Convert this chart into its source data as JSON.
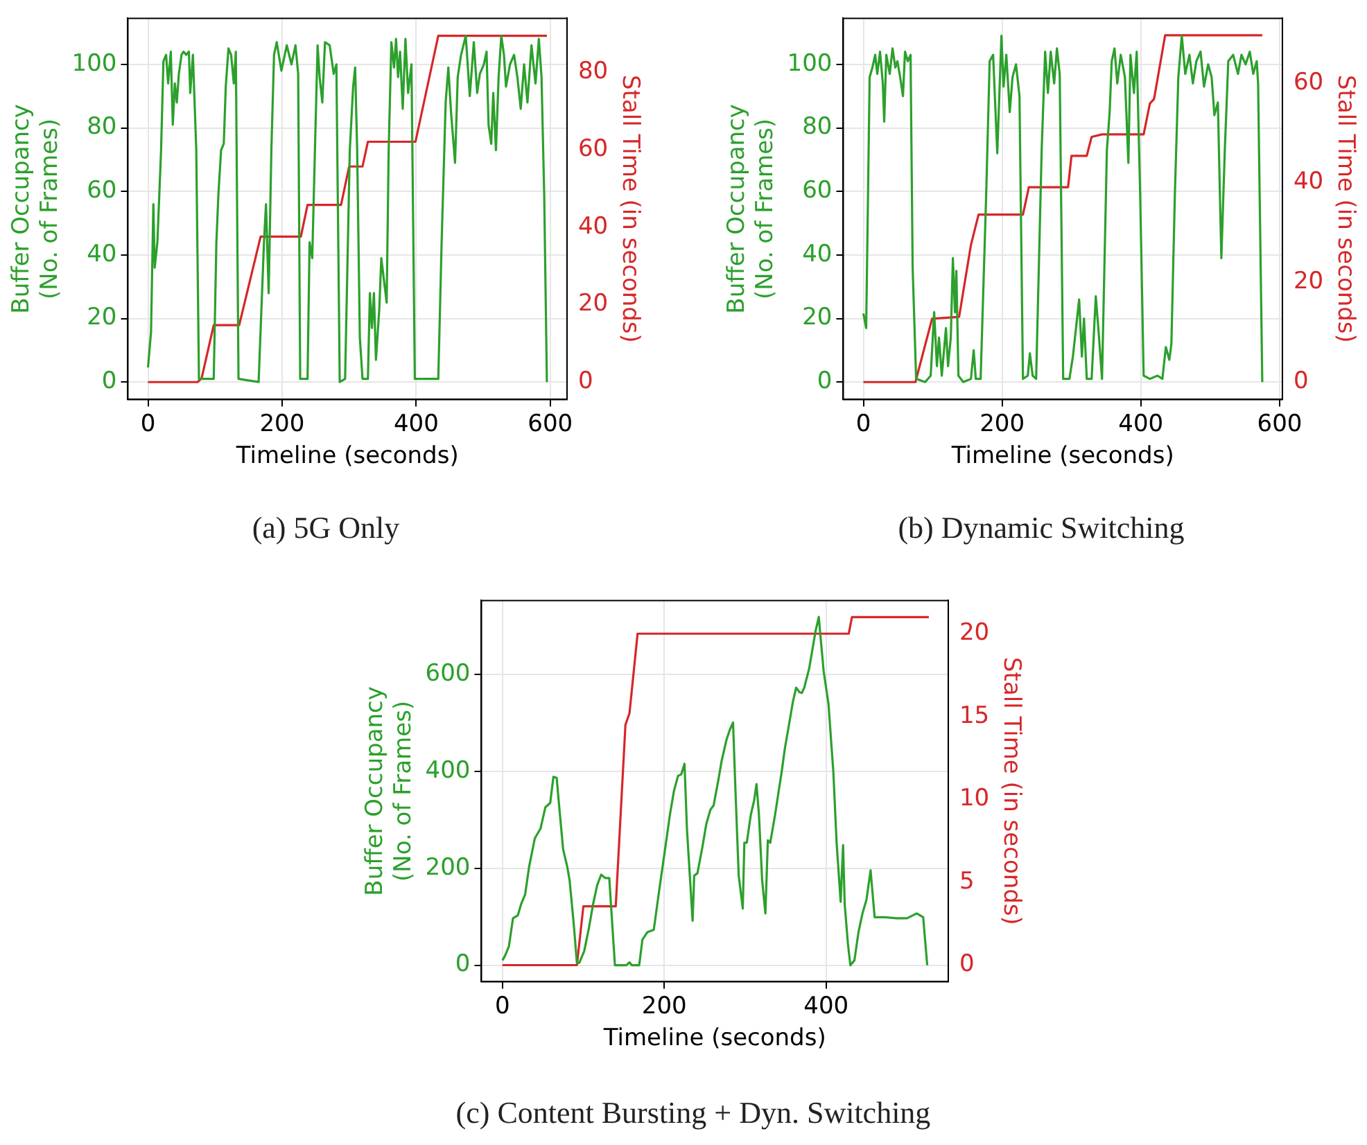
{
  "chart_data": [
    {
      "type": "line",
      "title": "(a) 5G Only",
      "xlabel": "Timeline (seconds)",
      "ylabel": "Buffer Occupancy\n(No. of Frames)",
      "y2label": "Stall Time (in seconds)",
      "xlim": [
        -30,
        625
      ],
      "xticks": [
        0,
        200,
        400,
        600
      ],
      "ylim": [
        -5.5,
        114.5
      ],
      "yticks": [
        0,
        20,
        40,
        60,
        80,
        100
      ],
      "y2lim": [
        -4.5,
        94
      ],
      "y2ticks": [
        0,
        20,
        40,
        60,
        80
      ],
      "grid": true,
      "series": [
        {
          "color": "#2ca02c",
          "x": [
            0,
            4.5,
            8,
            10,
            14,
            19.5,
            23,
            27,
            30,
            34,
            37,
            40,
            43,
            46,
            50,
            53,
            57,
            61,
            63,
            67,
            72,
            76,
            98,
            102,
            105,
            109,
            113,
            116,
            120,
            124,
            128,
            131,
            135,
            165,
            173,
            176,
            180,
            184,
            188,
            192,
            199,
            207,
            214,
            220,
            224,
            227,
            238,
            241,
            245,
            249,
            253,
            256,
            260,
            264,
            271,
            277,
            281,
            286,
            294,
            301,
            306,
            309,
            312,
            316,
            320,
            328,
            331,
            334,
            337,
            340,
            345,
            348,
            352,
            356,
            359,
            363,
            367,
            370,
            373,
            376,
            380,
            384,
            388,
            393,
            398,
            433,
            438,
            444,
            448,
            452,
            458,
            462,
            467,
            474,
            480,
            486,
            491,
            495,
            501,
            505,
            508,
            512,
            515,
            519,
            523,
            527,
            531,
            534,
            540,
            546,
            551,
            556,
            561,
            566,
            572,
            578,
            583,
            587,
            591,
            595
          ],
          "values": [
            4.6,
            15.7,
            56,
            36,
            44,
            73,
            101,
            103,
            94,
            104,
            81,
            94,
            88,
            97,
            103,
            104,
            103,
            104,
            91,
            103,
            73,
            1,
            1,
            44,
            59,
            73,
            75,
            93,
            105,
            103,
            94,
            104,
            1,
            0,
            44,
            56,
            28,
            73,
            103,
            107,
            98,
            106,
            100,
            106,
            97,
            1,
            1,
            44,
            39,
            73,
            106,
            96,
            88,
            107,
            106,
            97,
            100,
            0,
            1,
            73,
            93,
            99,
            73,
            14,
            1,
            1,
            28,
            17,
            28,
            7,
            23,
            39,
            32,
            25,
            73,
            107,
            99,
            108,
            96,
            104,
            86,
            108,
            91,
            100,
            1,
            1,
            44,
            88,
            99,
            85,
            69,
            96,
            103,
            109,
            90,
            107,
            91,
            97,
            100,
            104,
            81,
            75,
            91,
            73,
            96,
            109,
            103,
            93,
            100,
            103,
            96,
            86,
            100,
            88,
            106,
            94,
            108,
            96,
            59,
            0
          ]
        },
        {
          "color": "#d62728",
          "axis": "y2",
          "x": [
            0,
            74,
            80,
            98,
            136,
            168,
            228,
            238,
            288,
            300,
            320,
            328,
            399,
            433,
            595
          ],
          "values": [
            0,
            0,
            1,
            14.7,
            14.7,
            37.6,
            37.6,
            45.8,
            45.8,
            55.7,
            55.7,
            62.1,
            62.1,
            89.5,
            89.5
          ]
        }
      ]
    },
    {
      "type": "line",
      "title": "(b) Dynamic Switching",
      "xlabel": "Timeline (seconds)",
      "ylabel": "Buffer Occupancy\n(No. of Frames)",
      "y2label": "Stall Time (in seconds)",
      "xlim": [
        -29,
        604
      ],
      "xticks": [
        0,
        200,
        400,
        600
      ],
      "ylim": [
        -5.5,
        114.5
      ],
      "yticks": [
        0,
        20,
        40,
        60,
        80,
        100
      ],
      "y2lim": [
        -3.5,
        73
      ],
      "y2ticks": [
        0,
        20,
        40,
        60
      ],
      "grid": true,
      "series": [
        {
          "color": "#2ca02c",
          "x": [
            0,
            4,
            9,
            13,
            17,
            20,
            24,
            28,
            30,
            33,
            38,
            42,
            46,
            49,
            53,
            57,
            60,
            64,
            68,
            71,
            76,
            89,
            97,
            102,
            106,
            109,
            113,
            119,
            122,
            126,
            129,
            132,
            134,
            137,
            144,
            155,
            159,
            162,
            169,
            177,
            182,
            187,
            193,
            199,
            202,
            206,
            211,
            215,
            220,
            225,
            230,
            237,
            240,
            244,
            249,
            257,
            262,
            266,
            270,
            275,
            279,
            283,
            288,
            297,
            302,
            306,
            311,
            315,
            318,
            322,
            329,
            335,
            339,
            344,
            351,
            355,
            358,
            362,
            366,
            371,
            377,
            382,
            385,
            390,
            394,
            399,
            404,
            413,
            424,
            431,
            436,
            441,
            444,
            449,
            454,
            459,
            464,
            470,
            475,
            480,
            486,
            491,
            497,
            502,
            506,
            511,
            516,
            521,
            526,
            533,
            540,
            545,
            551,
            557,
            562,
            567,
            569,
            575
          ],
          "values": [
            21.6,
            17,
            96,
            99,
            103,
            97,
            104,
            94,
            82,
            103,
            97,
            105,
            99,
            101,
            96,
            90,
            104,
            101,
            103,
            36,
            1,
            0,
            2,
            22,
            5,
            14,
            2,
            17,
            5,
            14,
            39,
            22,
            35,
            2,
            0,
            1,
            10,
            1,
            1,
            59,
            101,
            103,
            72,
            109,
            93,
            103,
            85,
            96,
            100,
            90,
            1,
            2,
            9,
            2,
            1,
            73,
            104,
            91,
            104,
            94,
            105,
            97,
            1,
            1,
            8,
            16,
            26,
            8,
            20,
            1,
            1,
            27,
            16,
            1,
            73,
            85,
            101,
            105,
            94,
            103,
            96,
            69,
            103,
            91,
            104,
            59,
            2,
            1,
            2,
            1,
            11,
            7,
            12,
            59,
            96,
            109,
            97,
            103,
            94,
            101,
            104,
            93,
            100,
            96,
            84,
            88,
            39,
            73,
            101,
            103,
            97,
            103,
            100,
            104,
            97,
            101,
            94,
            0
          ]
        },
        {
          "color": "#d62728",
          "axis": "y2",
          "x": [
            0,
            75,
            99,
            138,
            155,
            166,
            230,
            238.5,
            246,
            295,
            300,
            322,
            329,
            344,
            404,
            413,
            419,
            435,
            575
          ],
          "values": [
            0,
            0,
            12.7,
            13.1,
            27.5,
            33.6,
            33.6,
            39.1,
            39.1,
            39.1,
            45.4,
            45.4,
            49.2,
            49.7,
            49.7,
            55.9,
            56.8,
            69.6,
            69.6
          ]
        }
      ]
    },
    {
      "type": "line",
      "title": "(c) Content Bursting + Dyn. Switching",
      "xlabel": "Timeline (seconds)",
      "ylabel": "Buffer Occupancy\n(No. of Frames)",
      "y2label": "Stall Time (in seconds)",
      "xlim": [
        -26,
        551
      ],
      "xticks": [
        0,
        200,
        400
      ],
      "ylim": [
        -34,
        753
      ],
      "yticks": [
        0,
        200,
        400,
        600
      ],
      "y2lim": [
        -1,
        22
      ],
      "y2ticks": [
        0,
        5,
        10,
        15,
        20
      ],
      "grid": true,
      "series": [
        {
          "color": "#2ca02c",
          "x": [
            0,
            3,
            8,
            13,
            19,
            23,
            28,
            33,
            40,
            47,
            53,
            59,
            63,
            67,
            70,
            75,
            80,
            83,
            88,
            92,
            95,
            101,
            107,
            112,
            117,
            122,
            127,
            132,
            139,
            153,
            157,
            160,
            169,
            173,
            179,
            187,
            193,
            200,
            207,
            212,
            217,
            221,
            225,
            228,
            235,
            237,
            241,
            247,
            252,
            257,
            261,
            267,
            271,
            277,
            281,
            285,
            288,
            292,
            297,
            299,
            302,
            307,
            311,
            314,
            317,
            321,
            325,
            328,
            331,
            337,
            341,
            345,
            349,
            355,
            359,
            363,
            367,
            370,
            373,
            379,
            383,
            387,
            391,
            393,
            397,
            403,
            409,
            413,
            418,
            421,
            423,
            427,
            430,
            435,
            440,
            445,
            450,
            455,
            460,
            473,
            487,
            500,
            512,
            520,
            525
          ],
          "values": [
            10,
            19,
            39,
            97,
            103,
            126,
            146,
            204,
            262,
            282,
            326,
            335,
            389,
            387,
            330,
            239,
            204,
            175,
            87,
            5,
            5,
            29,
            78,
            126,
            165,
            187,
            180,
            180,
            0,
            0,
            6,
            0,
            0,
            53,
            68,
            73,
            146,
            228,
            311,
            360,
            391,
            394,
            416,
            282,
            92,
            185,
            190,
            243,
            292,
            321,
            330,
            384,
            423,
            466,
            486,
            501,
            360,
            185,
            117,
            253,
            253,
            311,
            340,
            374,
            311,
            175,
            107,
            258,
            253,
            311,
            355,
            398,
            447,
            505,
            544,
            573,
            564,
            562,
            573,
            612,
            651,
            690,
            719,
            680,
            607,
            539,
            398,
            253,
            131,
            248,
            126,
            44,
            0,
            10,
            68,
            107,
            136,
            196,
            99,
            99,
            97,
            97,
            107,
            99,
            0
          ]
        },
        {
          "color": "#d62728",
          "axis": "y2",
          "x": [
            0,
            92,
            100,
            140,
            152,
            157,
            167,
            428,
            432,
            527
          ],
          "values": [
            0,
            0,
            3.55,
            3.55,
            14.5,
            15.2,
            20,
            20,
            21,
            21
          ]
        }
      ]
    }
  ]
}
